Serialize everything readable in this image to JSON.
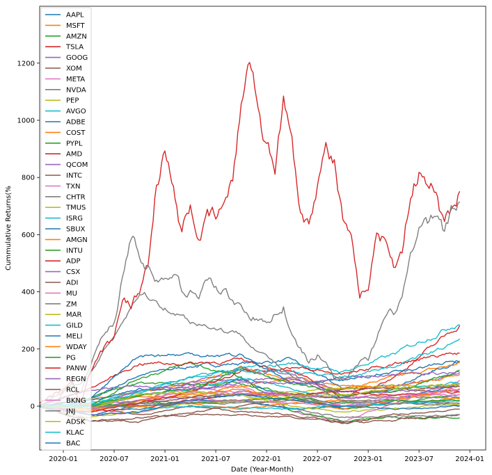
{
  "chart_data": {
    "type": "line",
    "title": "",
    "xlabel": "Date (Year-Month)",
    "ylabel": "Cummulative Returns(%",
    "ylim": [
      -155,
      1400
    ],
    "xlim": [
      "2019-10",
      "2024-02"
    ],
    "grid": false,
    "legend_placement": "upper-left",
    "yticks": [
      "0",
      "200",
      "400",
      "600",
      "800",
      "1000",
      "1200"
    ],
    "ytick_values": [
      0,
      200,
      400,
      600,
      800,
      1000,
      1200
    ],
    "xticks": [
      "2020-01",
      "2020-07",
      "2021-01",
      "2021-07",
      "2022-01",
      "2022-07",
      "2023-01",
      "2023-07",
      "2024-01"
    ],
    "monthly_x": [
      "2019-10",
      "2019-11",
      "2019-12",
      "2020-01",
      "2020-02",
      "2020-03",
      "2020-04",
      "2020-05",
      "2020-06",
      "2020-07",
      "2020-08",
      "2020-09",
      "2020-10",
      "2020-11",
      "2020-12",
      "2021-01",
      "2021-02",
      "2021-03",
      "2021-04",
      "2021-05",
      "2021-06",
      "2021-07",
      "2021-08",
      "2021-09",
      "2021-10",
      "2021-11",
      "2021-12",
      "2022-01",
      "2022-02",
      "2022-03",
      "2022-04",
      "2022-05",
      "2022-06",
      "2022-07",
      "2022-08",
      "2022-09",
      "2022-10",
      "2022-11",
      "2022-12",
      "2023-01",
      "2023-02",
      "2023-03",
      "2023-04",
      "2023-05",
      "2023-06",
      "2023-07",
      "2023-08",
      "2023-09",
      "2023-10",
      "2023-11",
      "2023-12"
    ],
    "semiannual_x": [
      "2019-10",
      "2020-04",
      "2020-10",
      "2021-04",
      "2021-10",
      "2022-04",
      "2022-10",
      "2023-04",
      "2023-12"
    ],
    "series": [
      {
        "name": "AAPL",
        "color": "#1f77b4",
        "values": [
          0,
          20,
          110,
          140,
          150,
          160,
          60,
          70,
          160
        ]
      },
      {
        "name": "MSFT",
        "color": "#ff7f0e",
        "values": [
          0,
          20,
          50,
          80,
          130,
          100,
          60,
          100,
          150
        ]
      },
      {
        "name": "AMZN",
        "color": "#2ca02c",
        "values": [
          0,
          30,
          80,
          75,
          80,
          40,
          -10,
          10,
          40
        ]
      },
      {
        "name": "TSLA",
        "color": "#d62728",
        "monthly": true,
        "values": [
          0,
          20,
          40,
          50,
          90,
          0,
          100,
          150,
          200,
          230,
          400,
          350,
          400,
          500,
          800,
          900,
          750,
          600,
          700,
          600,
          650,
          650,
          700,
          780,
          1050,
          1250,
          1050,
          900,
          850,
          1050,
          950,
          700,
          650,
          800,
          900,
          850,
          650,
          560,
          350,
          420,
          600,
          580,
          500,
          560,
          750,
          820,
          760,
          750,
          620,
          700,
          780
        ]
      },
      {
        "name": "GOOG",
        "color": "#9467bd",
        "values": [
          0,
          10,
          20,
          80,
          130,
          110,
          50,
          70,
          110
        ]
      },
      {
        "name": "XOM",
        "color": "#8c564b",
        "values": [
          0,
          -50,
          -55,
          -20,
          0,
          30,
          60,
          60,
          50
        ]
      },
      {
        "name": "META",
        "color": "#e377c2",
        "values": [
          0,
          -10,
          40,
          60,
          70,
          -20,
          -50,
          10,
          90
        ]
      },
      {
        "name": "NVDA",
        "color": "#7f7f7f",
        "monthly": true,
        "values": [
          0,
          10,
          30,
          50,
          80,
          40,
          120,
          200,
          260,
          300,
          450,
          600,
          550,
          500,
          450,
          420,
          470,
          400,
          420,
          380,
          450,
          420,
          400,
          380,
          350,
          330,
          300,
          280,
          330,
          360,
          240,
          200,
          150,
          180,
          160,
          100,
          100,
          130,
          150,
          160,
          230,
          300,
          320,
          380,
          520,
          600,
          620,
          650,
          600,
          680,
          710
        ]
      },
      {
        "name": "PEP",
        "color": "#bcbd22",
        "values": [
          0,
          -10,
          0,
          10,
          20,
          30,
          30,
          35,
          25
        ]
      },
      {
        "name": "AVGO",
        "color": "#17becf",
        "values": [
          0,
          10,
          50,
          100,
          130,
          150,
          120,
          180,
          300
        ]
      },
      {
        "name": "ADBE",
        "color": "#1f77b4",
        "values": [
          0,
          20,
          60,
          50,
          90,
          30,
          -10,
          20,
          80
        ]
      },
      {
        "name": "COST",
        "color": "#ff7f0e",
        "values": [
          0,
          5,
          30,
          30,
          70,
          90,
          70,
          70,
          110
        ]
      },
      {
        "name": "PYPL",
        "color": "#2ca02c",
        "values": [
          0,
          0,
          100,
          150,
          100,
          -20,
          -50,
          -40,
          -40
        ]
      },
      {
        "name": "AMD",
        "color": "#d62728",
        "values": [
          0,
          60,
          150,
          150,
          160,
          120,
          30,
          100,
          290
        ]
      },
      {
        "name": "QCOM",
        "color": "#9467bd",
        "values": [
          0,
          -10,
          60,
          80,
          90,
          100,
          40,
          50,
          80
        ]
      },
      {
        "name": "INTC",
        "color": "#8c564b",
        "values": [
          0,
          -10,
          -30,
          0,
          -20,
          -30,
          -60,
          -50,
          -30
        ]
      },
      {
        "name": "TXN",
        "color": "#e377c2",
        "values": [
          0,
          -10,
          20,
          50,
          50,
          40,
          30,
          40,
          40
        ]
      },
      {
        "name": "CHTR",
        "color": "#7f7f7f",
        "values": [
          0,
          -10,
          20,
          10,
          20,
          -10,
          -40,
          -40,
          -30
        ]
      },
      {
        "name": "TMUS",
        "color": "#bcbd22",
        "values": [
          0,
          0,
          40,
          50,
          40,
          50,
          60,
          70,
          70
        ]
      },
      {
        "name": "ISRG",
        "color": "#17becf",
        "values": [
          0,
          -10,
          40,
          60,
          100,
          60,
          30,
          60,
          80
        ]
      },
      {
        "name": "SBUX",
        "color": "#1f77b4",
        "values": [
          0,
          -30,
          0,
          20,
          20,
          -10,
          0,
          10,
          10
        ]
      },
      {
        "name": "AMGN",
        "color": "#ff7f0e",
        "values": [
          0,
          0,
          0,
          10,
          -10,
          10,
          20,
          10,
          30
        ]
      },
      {
        "name": "INTU",
        "color": "#2ca02c",
        "values": [
          0,
          0,
          40,
          60,
          130,
          80,
          40,
          50,
          120
        ]
      },
      {
        "name": "ADP",
        "color": "#d62728",
        "values": [
          0,
          -20,
          -10,
          20,
          40,
          40,
          50,
          40,
          50
        ]
      },
      {
        "name": "CSX",
        "color": "#9467bd",
        "values": [
          0,
          -10,
          20,
          30,
          50,
          40,
          30,
          30,
          30
        ]
      },
      {
        "name": "ADI",
        "color": "#8c564b",
        "values": [
          0,
          -10,
          10,
          30,
          40,
          40,
          30,
          60,
          70
        ]
      },
      {
        "name": "MU",
        "color": "#e377c2",
        "values": [
          0,
          -10,
          10,
          70,
          40,
          40,
          0,
          20,
          60
        ]
      },
      {
        "name": "ZM",
        "color": "#7f7f7f",
        "values": [
          0,
          100,
          400,
          300,
          250,
          100,
          20,
          20,
          10
        ]
      },
      {
        "name": "MAR",
        "color": "#bcbd22",
        "values": [
          0,
          -40,
          -20,
          10,
          20,
          40,
          40,
          60,
          80
        ]
      },
      {
        "name": "GILD",
        "color": "#17becf",
        "values": [
          0,
          10,
          -10,
          0,
          -5,
          -10,
          0,
          10,
          20
        ]
      },
      {
        "name": "MELI",
        "color": "#1f77b4",
        "values": [
          0,
          20,
          180,
          180,
          180,
          80,
          90,
          120,
          160
        ]
      },
      {
        "name": "WDAY",
        "color": "#ff7f0e",
        "values": [
          0,
          -20,
          20,
          40,
          60,
          20,
          -10,
          20,
          60
        ]
      },
      {
        "name": "PG",
        "color": "#2ca02c",
        "values": [
          0,
          0,
          10,
          10,
          20,
          30,
          10,
          20,
          20
        ]
      },
      {
        "name": "PANW",
        "color": "#d62728",
        "values": [
          0,
          -20,
          10,
          50,
          120,
          140,
          110,
          150,
          190
        ]
      },
      {
        "name": "REGN",
        "color": "#9467bd",
        "values": [
          0,
          60,
          70,
          60,
          80,
          80,
          100,
          110,
          120
        ]
      },
      {
        "name": "RCL",
        "color": "#8c564b",
        "values": [
          0,
          -50,
          -40,
          -30,
          -30,
          -40,
          -60,
          -30,
          -10
        ]
      },
      {
        "name": "BKNG",
        "color": "#e377c2",
        "values": [
          0,
          -30,
          -20,
          20,
          20,
          10,
          0,
          30,
          60
        ]
      },
      {
        "name": "JNJ",
        "color": "#7f7f7f",
        "values": [
          0,
          0,
          0,
          10,
          10,
          20,
          15,
          10,
          5
        ]
      },
      {
        "name": "ADSK",
        "color": "#bcbd22",
        "values": [
          0,
          -10,
          40,
          50,
          40,
          0,
          -20,
          -10,
          10
        ]
      },
      {
        "name": "KLAC",
        "color": "#17becf",
        "values": [
          0,
          0,
          50,
          100,
          130,
          120,
          100,
          140,
          230
        ]
      },
      {
        "name": "BAC",
        "color": "#1f77b4",
        "values": [
          0,
          -30,
          -20,
          20,
          40,
          20,
          0,
          -10,
          0
        ]
      }
    ]
  }
}
